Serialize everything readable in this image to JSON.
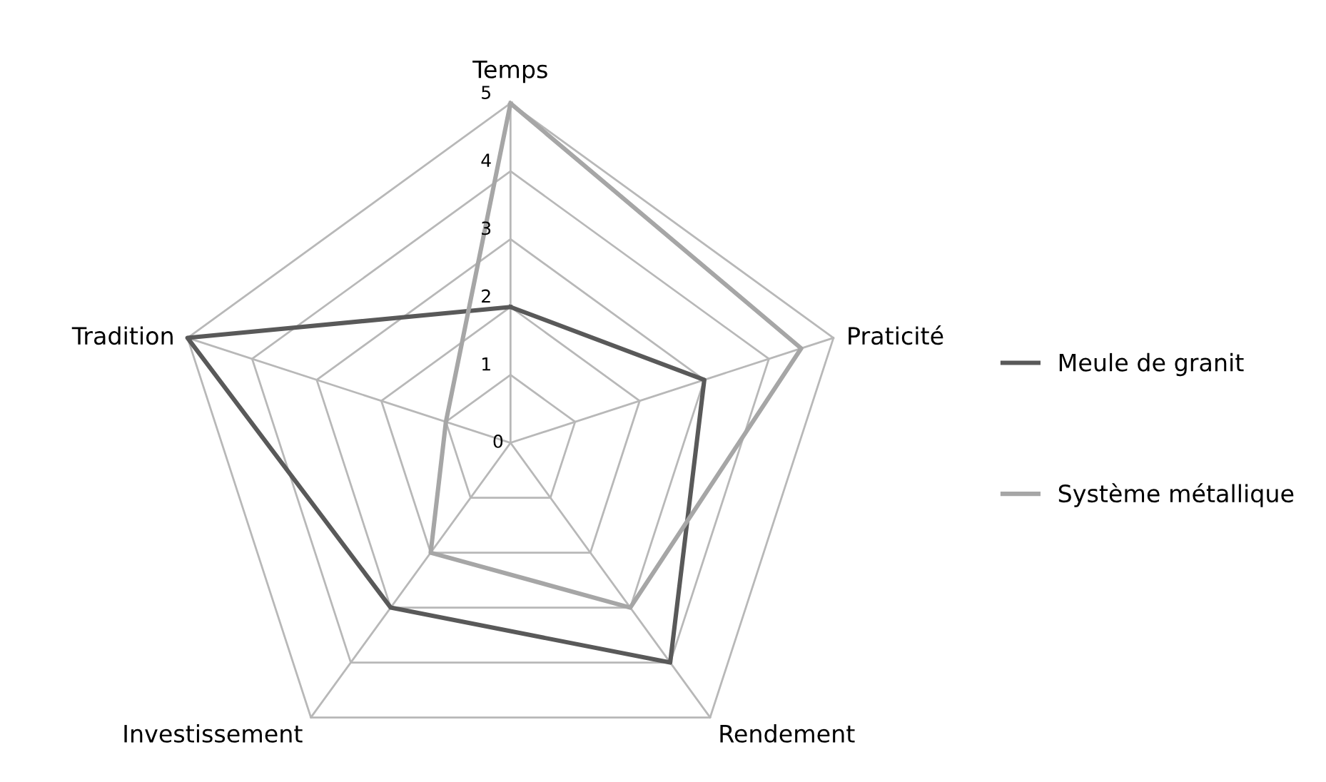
{
  "chart_data": {
    "type": "radar",
    "categories": [
      "Temps",
      "Praticité",
      "Rendement",
      "Investissement",
      "Tradition"
    ],
    "series": [
      {
        "name": "Meule de granit",
        "color": "#595959",
        "values": [
          2,
          3,
          4,
          3,
          5
        ]
      },
      {
        "name": "Système métallique",
        "color": "#a6a6a6",
        "values": [
          5,
          4.5,
          3,
          2,
          1
        ]
      }
    ],
    "ylim": [
      0,
      5
    ],
    "yticks": [
      0,
      1,
      2,
      3,
      4,
      5
    ],
    "grid": true,
    "legend": "right",
    "marker": "none",
    "line_style": "solid"
  }
}
